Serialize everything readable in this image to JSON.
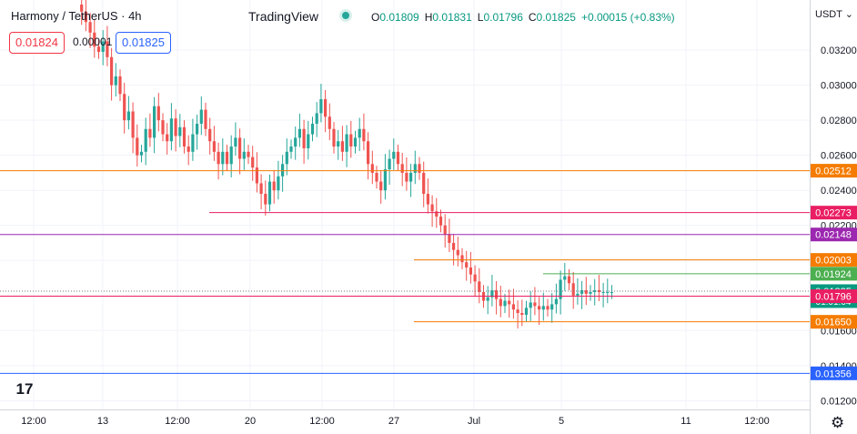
{
  "header": {
    "symbol": "Harmony / TetherUS · 4h",
    "brand": "TradingView",
    "ohlc": [
      {
        "k": "O",
        "v": "0.01809"
      },
      {
        "k": "H",
        "v": "0.01831"
      },
      {
        "k": "L",
        "v": "0.01796"
      },
      {
        "k": "C",
        "v": "0.01825"
      },
      {
        "k": "",
        "v": "+0.00015 (+0.83%)"
      }
    ],
    "sell_price": "0.01824",
    "spread": "0.00001",
    "buy_price": "0.01825",
    "currency": "USDT"
  },
  "colors": {
    "up": "#26a69a",
    "down": "#ef5350",
    "orange": "#f57c00",
    "pink": "#e91e63",
    "purple": "#9c27b0",
    "blue": "#2962ff",
    "green": "#4caf50"
  },
  "chart_data": {
    "type": "candlestick",
    "y_axis": {
      "range": [
        0.0115,
        0.0346
      ],
      "ticks": [
        "0.03200",
        "0.03000",
        "0.02800",
        "0.02600",
        "0.02400",
        "0.02200",
        "0.02000",
        "0.01600",
        "0.01400",
        "0.01200"
      ]
    },
    "x_axis": {
      "ticks": [
        "12:00",
        "13",
        "12:00",
        "20",
        "12:00",
        "27",
        "Jul",
        "5",
        "11",
        "12:00"
      ]
    },
    "levels": [
      {
        "label": "0.02512",
        "value": 0.02512,
        "color": "#f57c00",
        "start": "full"
      },
      {
        "label": "0.02273",
        "value": 0.02273,
        "color": "#e91e63",
        "start": "mid"
      },
      {
        "label": "0.02148",
        "value": 0.02148,
        "color": "#9c27b0",
        "start": "full"
      },
      {
        "label": "0.02003",
        "value": 0.02003,
        "color": "#f57c00",
        "start": "late"
      },
      {
        "label": "0.01924",
        "value": 0.01924,
        "color": "#4caf50",
        "start": "last"
      },
      {
        "label": "0.01825",
        "value": 0.01825,
        "color": "#089981",
        "start": "none",
        "sub": "01:01:04"
      },
      {
        "label": "0.01796",
        "value": 0.01796,
        "color": "#e91e63",
        "start": "full"
      },
      {
        "label": "0.01650",
        "value": 0.0165,
        "color": "#f57c00",
        "start": "late"
      },
      {
        "label": "0.01356",
        "value": 0.01356,
        "color": "#2962ff",
        "start": "full"
      }
    ],
    "closes": [
      0.0346,
      0.0342,
      0.0336,
      0.033,
      0.0322,
      0.0319,
      0.0325,
      0.0316,
      0.03,
      0.0305,
      0.0295,
      0.028,
      0.0285,
      0.027,
      0.026,
      0.0262,
      0.0275,
      0.027,
      0.0288,
      0.028,
      0.0272,
      0.0268,
      0.0281,
      0.0271,
      0.0276,
      0.0265,
      0.0262,
      0.0272,
      0.0278,
      0.0286,
      0.0275,
      0.0268,
      0.0262,
      0.0255,
      0.0262,
      0.0255,
      0.0265,
      0.027,
      0.0258,
      0.0262,
      0.0259,
      0.0253,
      0.0244,
      0.0238,
      0.0232,
      0.0245,
      0.024,
      0.0248,
      0.0255,
      0.0262,
      0.0265,
      0.027,
      0.0275,
      0.0264,
      0.0272,
      0.0278,
      0.0284,
      0.0292,
      0.0282,
      0.0275,
      0.0265,
      0.0268,
      0.0262,
      0.0272,
      0.0265,
      0.027,
      0.0275,
      0.0268,
      0.0255,
      0.025,
      0.0245,
      0.024,
      0.0252,
      0.0258,
      0.0262,
      0.0255,
      0.025,
      0.0245,
      0.025,
      0.0255,
      0.025,
      0.0238,
      0.0232,
      0.0228,
      0.0225,
      0.022,
      0.0215,
      0.021,
      0.0206,
      0.0203,
      0.0199,
      0.0196,
      0.0192,
      0.0188,
      0.0182,
      0.0177,
      0.0179,
      0.0183,
      0.0178,
      0.0174,
      0.0177,
      0.0175,
      0.0172,
      0.017,
      0.0169,
      0.0173,
      0.0176,
      0.0174,
      0.0172,
      0.0174,
      0.0172,
      0.0175,
      0.0178,
      0.0189,
      0.0191,
      0.0187,
      0.018,
      0.0181,
      0.0183,
      0.0181,
      0.0182,
      0.0183,
      0.0182,
      0.0182,
      0.0182,
      0.0182
    ]
  }
}
